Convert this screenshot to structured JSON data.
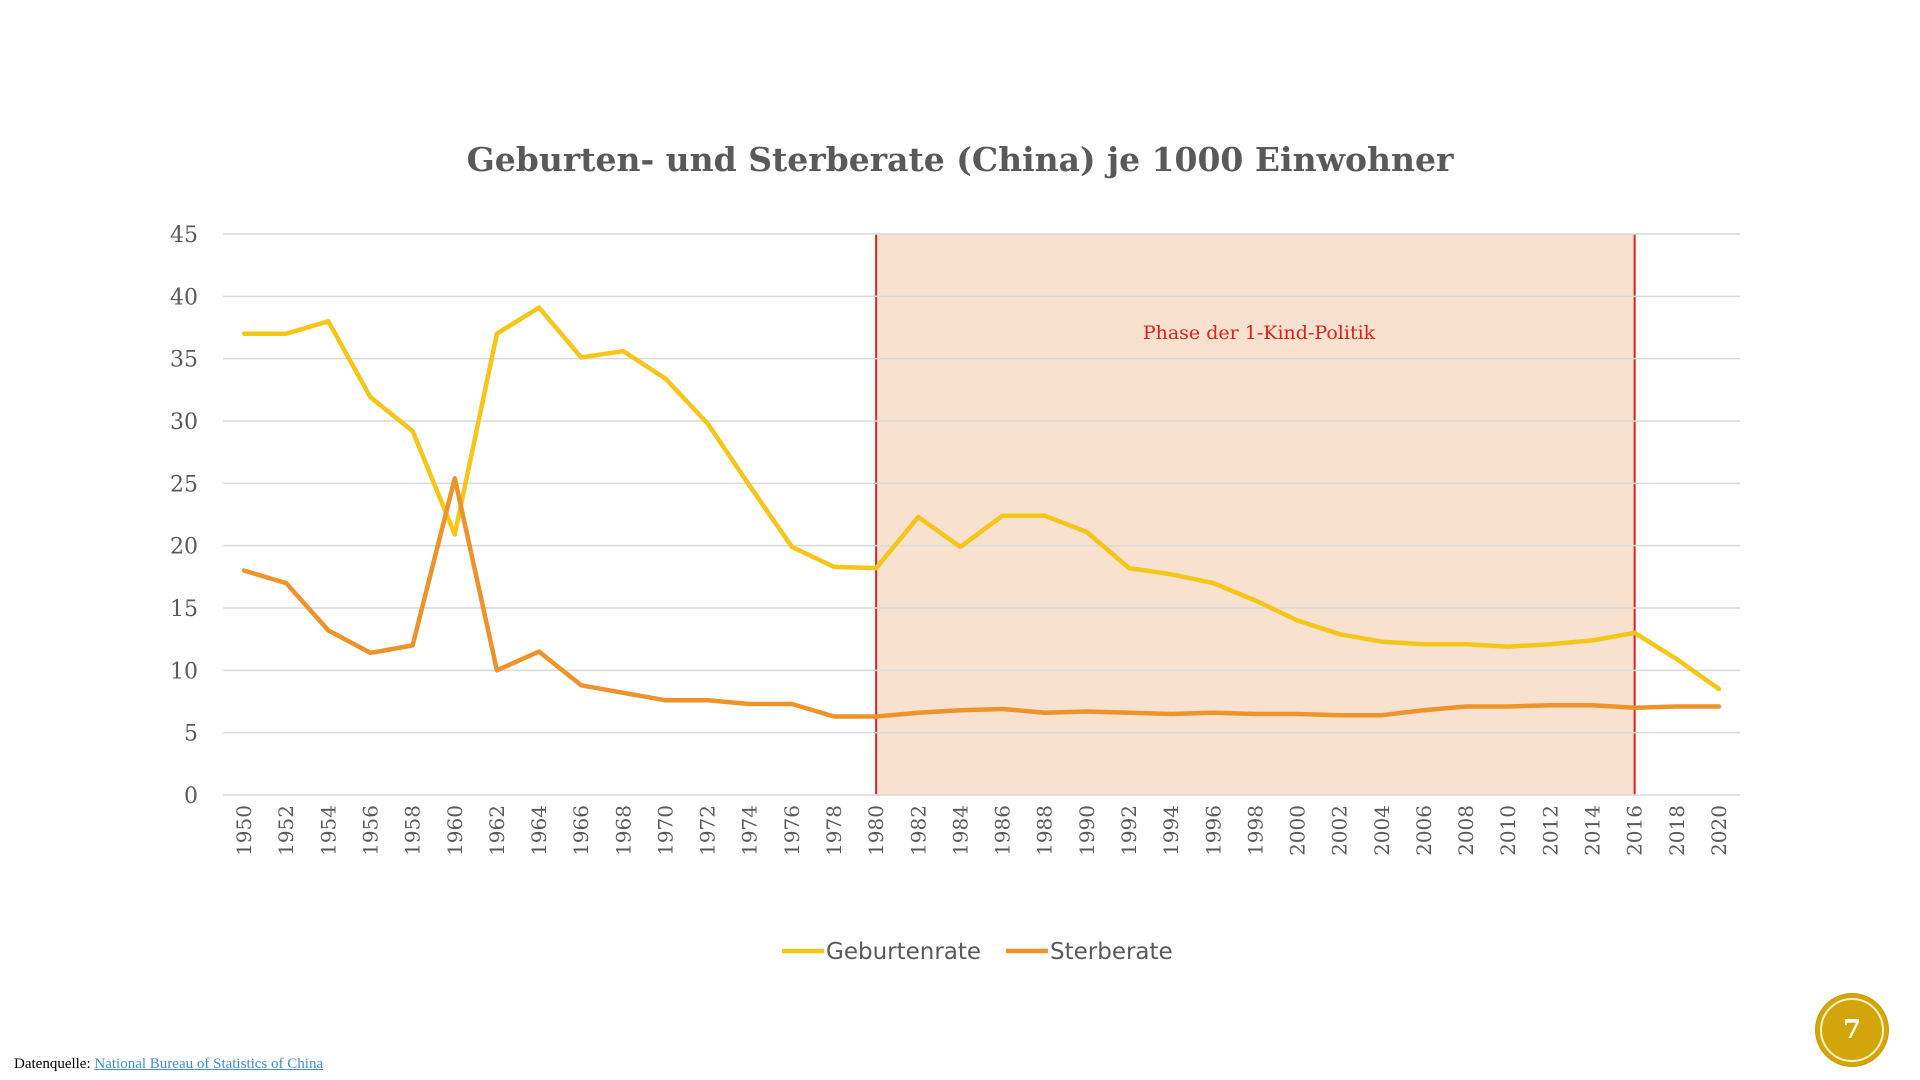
{
  "chart_data": {
    "type": "line",
    "title": "Geburten- und Sterberate (China) je 1000 Einwohner",
    "xlabel": "",
    "ylabel": "",
    "ylim": [
      0,
      45
    ],
    "yticks": [
      0,
      5,
      10,
      15,
      20,
      25,
      30,
      35,
      40,
      45
    ],
    "grid": true,
    "legend": "bottom",
    "categories": [
      "1950",
      "1952",
      "1954",
      "1956",
      "1958",
      "1960",
      "1962",
      "1964",
      "1966",
      "1968",
      "1970",
      "1972",
      "1974",
      "1976",
      "1978",
      "1980",
      "1982",
      "1984",
      "1986",
      "1988",
      "1990",
      "1992",
      "1994",
      "1996",
      "1998",
      "2000",
      "2002",
      "2004",
      "2006",
      "2008",
      "2010",
      "2012",
      "2014",
      "2016",
      "2018",
      "2020"
    ],
    "series": [
      {
        "name": "Geburtenrate",
        "color": "#f5c518",
        "values": [
          37.0,
          37.0,
          38.0,
          31.9,
          29.2,
          20.9,
          37.0,
          39.1,
          35.1,
          35.6,
          33.4,
          29.8,
          24.8,
          19.9,
          18.3,
          18.2,
          22.3,
          19.9,
          22.4,
          22.4,
          21.1,
          18.2,
          17.7,
          17.0,
          15.6,
          14.0,
          12.9,
          12.3,
          12.1,
          12.1,
          11.9,
          12.1,
          12.4,
          13.0,
          10.9,
          8.5
        ]
      },
      {
        "name": "Sterberate",
        "color": "#ee922a",
        "values": [
          18.0,
          17.0,
          13.2,
          11.4,
          12.0,
          25.4,
          10.0,
          11.5,
          8.8,
          8.2,
          7.6,
          7.6,
          7.3,
          7.3,
          6.3,
          6.3,
          6.6,
          6.8,
          6.9,
          6.6,
          6.7,
          6.6,
          6.5,
          6.6,
          6.5,
          6.5,
          6.4,
          6.4,
          6.8,
          7.1,
          7.1,
          7.2,
          7.2,
          7.0,
          7.1,
          7.1
        ]
      }
    ],
    "highlight": {
      "from": "1980",
      "to": "2016",
      "label": "Phase der 1-Kind-Politik",
      "fill": "#f9e1d0",
      "line_color": "#e0201f"
    }
  },
  "footer": {
    "label": "Datenquelle:",
    "link_text": "National Bureau of Statistics of China"
  },
  "slide_number": "7",
  "colors": {
    "badge": "#d4a50a",
    "title": "#595959",
    "link": "#3d8fd1"
  }
}
